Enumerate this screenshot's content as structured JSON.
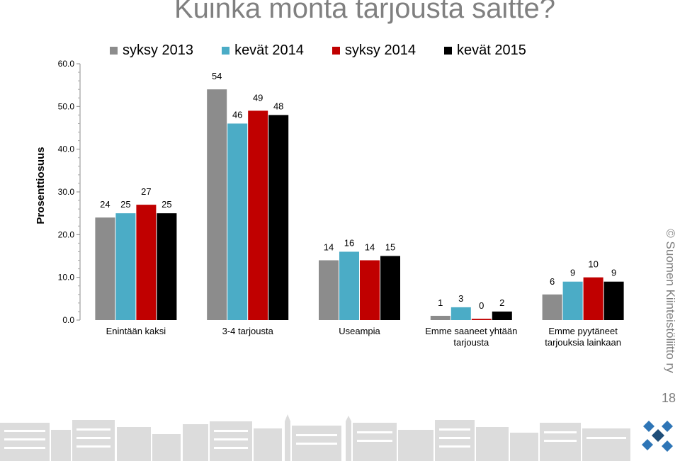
{
  "title": "Kuinka monta tarjousta saitte?",
  "watermark": "© Suomen Kiinteistöliitto ry",
  "page_number": "18",
  "logo_icon": "diamond-logo-icon",
  "chart_data": {
    "type": "bar",
    "ylabel": "Prosenttiosuus",
    "xlabel": "",
    "ylim": [
      0,
      60
    ],
    "yticks": [
      "0.0",
      "10.0",
      "20.0",
      "30.0",
      "40.0",
      "50.0",
      "60.0"
    ],
    "grid": false,
    "legend_position": "top",
    "categories": [
      [
        "Enintään kaksi"
      ],
      [
        "3-4 tarjousta"
      ],
      [
        "Useampia"
      ],
      [
        "Emme saaneet yhtään",
        "tarjousta"
      ],
      [
        "Emme pyytäneet",
        "tarjouksia lainkaan"
      ]
    ],
    "series": [
      {
        "name": "syksy 2013",
        "color": "#8c8c8c",
        "values": [
          24,
          54,
          14,
          1,
          6
        ],
        "labels": [
          "24",
          "54",
          "14",
          "1",
          "6"
        ]
      },
      {
        "name": "kevät 2014",
        "color": "#4bacc6",
        "values": [
          25,
          46,
          16,
          3,
          9
        ],
        "labels": [
          "25",
          "46",
          "16",
          "3",
          "9"
        ]
      },
      {
        "name": "syksy 2014",
        "color": "#c00000",
        "values": [
          27,
          49,
          14,
          0.3,
          10
        ],
        "labels": [
          "27",
          "49",
          "14",
          "0",
          "10"
        ]
      },
      {
        "name": "kevät 2015",
        "color": "#000000",
        "values": [
          25,
          48,
          15,
          2,
          9
        ],
        "labels": [
          "25",
          "48",
          "15",
          "2",
          "9"
        ]
      }
    ]
  }
}
